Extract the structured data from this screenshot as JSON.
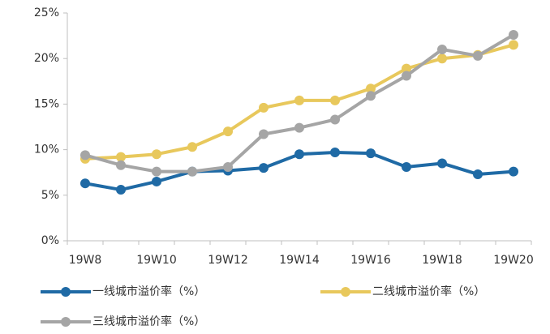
{
  "chart_data": {
    "type": "line",
    "categories": [
      "19W8",
      null,
      "19W10",
      null,
      "19W12",
      null,
      "19W14",
      null,
      "19W16",
      null,
      "19W18",
      null,
      "19W20"
    ],
    "series": [
      {
        "name": "一线城市溢价率（%）",
        "color": "#1f6aa5",
        "values": [
          6.3,
          5.6,
          6.5,
          7.6,
          7.7,
          8.0,
          9.5,
          9.7,
          9.6,
          8.1,
          8.5,
          7.3,
          7.6
        ]
      },
      {
        "name": "二线城市溢价率（%）",
        "color": "#e8c85c",
        "values": [
          9.0,
          9.2,
          9.5,
          10.3,
          12.0,
          14.6,
          15.4,
          15.4,
          16.7,
          18.9,
          20.0,
          20.4,
          21.5
        ]
      },
      {
        "name": "三线城市溢价率（%）",
        "color": "#a5a5a5",
        "values": [
          9.4,
          8.3,
          7.6,
          7.6,
          8.1,
          11.7,
          12.4,
          13.3,
          15.9,
          18.1,
          21.0,
          20.3,
          22.6
        ]
      }
    ],
    "ylim": [
      0,
      25
    ],
    "yticks": [
      {
        "value": 0,
        "label": "0%"
      },
      {
        "value": 5,
        "label": "5%"
      },
      {
        "value": 10,
        "label": "10%"
      },
      {
        "value": 15,
        "label": "15%"
      },
      {
        "value": 20,
        "label": "20%"
      },
      {
        "value": 25,
        "label": "25%"
      }
    ],
    "grid": false,
    "legend": "bottom"
  }
}
